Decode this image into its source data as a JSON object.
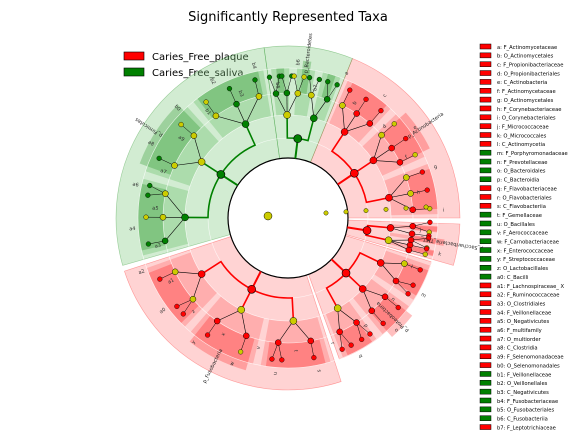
{
  "chart_data": {
    "type": "cladogram",
    "title": "Significantly Represented Taxa",
    "classes": [
      {
        "name": "Caries_Free_plaque",
        "color": "#ff0000"
      },
      {
        "name": "Caries_Free_saliva",
        "color": "#008000"
      }
    ],
    "taxa_key": [
      {
        "code": "a",
        "name": "F_Actinomycetaceae",
        "class": "plaque"
      },
      {
        "code": "b",
        "name": "O_Actinomycetales",
        "class": "plaque"
      },
      {
        "code": "c",
        "name": "F_Propionibacteriaceae",
        "class": "plaque"
      },
      {
        "code": "d",
        "name": "O_Propionibacteriales",
        "class": "plaque"
      },
      {
        "code": "e",
        "name": "C_Actinobacteria",
        "class": "plaque"
      },
      {
        "code": "f",
        "name": "F_Actinomycetaceae",
        "class": "plaque"
      },
      {
        "code": "g",
        "name": "O_Actinomycetales",
        "class": "plaque"
      },
      {
        "code": "h",
        "name": "F_Corynebacteriaceae",
        "class": "plaque"
      },
      {
        "code": "i",
        "name": "O_Corynebacteriales",
        "class": "plaque"
      },
      {
        "code": "j",
        "name": "F_Micrococcaceae",
        "class": "plaque"
      },
      {
        "code": "k",
        "name": "O_Micrococcales",
        "class": "plaque"
      },
      {
        "code": "l",
        "name": "C_Actinomycetia",
        "class": "plaque"
      },
      {
        "code": "m",
        "name": "F_Porphyromonadaceae",
        "class": "saliva"
      },
      {
        "code": "n",
        "name": "F_Prevotellaceae",
        "class": "saliva"
      },
      {
        "code": "o",
        "name": "O_Bacteroidales",
        "class": "saliva"
      },
      {
        "code": "p",
        "name": "C_Bacteroidia",
        "class": "saliva"
      },
      {
        "code": "q",
        "name": "F_Flavobacteriaceae",
        "class": "plaque"
      },
      {
        "code": "r",
        "name": "O_Flavobacteriales",
        "class": "plaque"
      },
      {
        "code": "s",
        "name": "C_Flavobacteriia",
        "class": "plaque"
      },
      {
        "code": "t",
        "name": "F_Gemellaceae",
        "class": "saliva"
      },
      {
        "code": "u",
        "name": "O_Bacillales",
        "class": "saliva"
      },
      {
        "code": "v",
        "name": "F_Aerococcaceae",
        "class": "saliva"
      },
      {
        "code": "w",
        "name": "F_Carnobacteriaceae",
        "class": "saliva"
      },
      {
        "code": "x",
        "name": "F_Enterococcaceae",
        "class": "saliva"
      },
      {
        "code": "y",
        "name": "F_Streptococcaceae",
        "class": "saliva"
      },
      {
        "code": "z",
        "name": "O_Lactobacillales",
        "class": "saliva"
      },
      {
        "code": "a0",
        "name": "C_Bacilli",
        "class": "saliva"
      },
      {
        "code": "a1",
        "name": "F_Lachnospiraceae_ X",
        "class": "plaque"
      },
      {
        "code": "a2",
        "name": "F_Ruminococcaceae",
        "class": "plaque"
      },
      {
        "code": "a3",
        "name": "O_Clostridiales",
        "class": "plaque"
      },
      {
        "code": "a4",
        "name": "F_Veillonellaceae",
        "class": "plaque"
      },
      {
        "code": "a5",
        "name": "O_Negativicutes",
        "class": "plaque"
      },
      {
        "code": "a6",
        "name": "F_multifamily",
        "class": "plaque"
      },
      {
        "code": "a7",
        "name": "O_multiorder",
        "class": "plaque"
      },
      {
        "code": "a8",
        "name": "C_Clostridia",
        "class": "plaque"
      },
      {
        "code": "a9",
        "name": "F_Selenomonadaceae",
        "class": "plaque"
      },
      {
        "code": "b0",
        "name": "O_Selenomonadales",
        "class": "plaque"
      },
      {
        "code": "b1",
        "name": "F_Veillonellaceae",
        "class": "saliva"
      },
      {
        "code": "b2",
        "name": "O_Veillonellales",
        "class": "saliva"
      },
      {
        "code": "b3",
        "name": "C_Negativicutes",
        "class": "saliva"
      },
      {
        "code": "b4",
        "name": "F_Fusobacteriaceae",
        "class": "saliva"
      },
      {
        "code": "b5",
        "name": "O_Fusobacteriales",
        "class": "saliva"
      },
      {
        "code": "b6",
        "name": "C_Fusobacteriia",
        "class": "saliva"
      },
      {
        "code": "b7",
        "name": "F_Leptotrichiaceae",
        "class": "plaque"
      }
    ],
    "phyla": [
      {
        "name": "p_Actinobacteria",
        "class": "plaque"
      },
      {
        "name": "p_Saccharibacteria_TM7_",
        "class": "plaque"
      },
      {
        "name": "p_Proteobacteria",
        "class": "plaque"
      },
      {
        "name": "p_Fusobacteria",
        "class": "plaque"
      },
      {
        "name": "p_Firmicutes",
        "class": "saliva"
      },
      {
        "name": "p_Bacteroidetes",
        "class": "saliva"
      }
    ],
    "segment_labels": [
      "a",
      "b",
      "c",
      "d",
      "e",
      "f",
      "g",
      "h",
      "i",
      "j",
      "k",
      "l",
      "m",
      "n",
      "o",
      "p",
      "q",
      "r",
      "s",
      "t",
      "u",
      "v",
      "w",
      "x",
      "y",
      "z",
      "a0",
      "a1",
      "a2",
      "a3",
      "a4",
      "a5",
      "a6",
      "a7",
      "a8",
      "a9",
      "b0",
      "b1",
      "b2",
      "b3",
      "b4",
      "b5",
      "b6",
      "b7"
    ]
  }
}
